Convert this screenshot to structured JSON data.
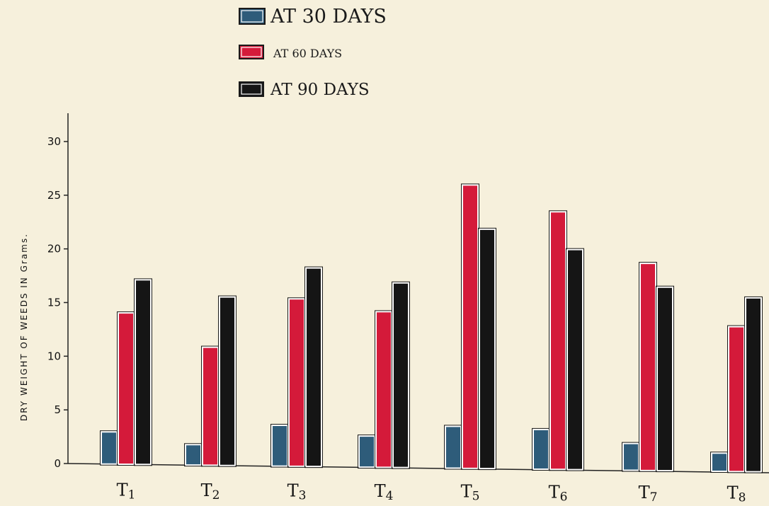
{
  "chart_data": {
    "type": "bar",
    "title": "",
    "xlabel": "",
    "ylabel": "DRY WEIGHT OF WEEDS IN Grams.",
    "ylim": [
      0,
      30
    ],
    "yticks": [
      "0",
      "5",
      "10",
      "15",
      "20",
      "25",
      "30"
    ],
    "categories": [
      "T1",
      "T2",
      "T3",
      "T4",
      "T5",
      "T6",
      "T7",
      "T8"
    ],
    "series": [
      {
        "name": "AT 30 DAYS",
        "color": "#2e5c7a",
        "values": [
          3.0,
          1.9,
          3.8,
          2.9,
          3.9,
          3.7,
          2.5,
          1.7
        ]
      },
      {
        "name": "AT 60 DAYS",
        "color": "#d41a3a",
        "values": [
          14.1,
          11.0,
          15.6,
          14.5,
          26.4,
          24.0,
          19.3,
          13.5
        ]
      },
      {
        "name": "AT 90 DAYS",
        "color": "#151515",
        "values": [
          17.2,
          15.7,
          18.5,
          17.2,
          22.3,
          20.5,
          17.1,
          16.2
        ]
      }
    ],
    "legend_position": "top",
    "grid": false
  }
}
